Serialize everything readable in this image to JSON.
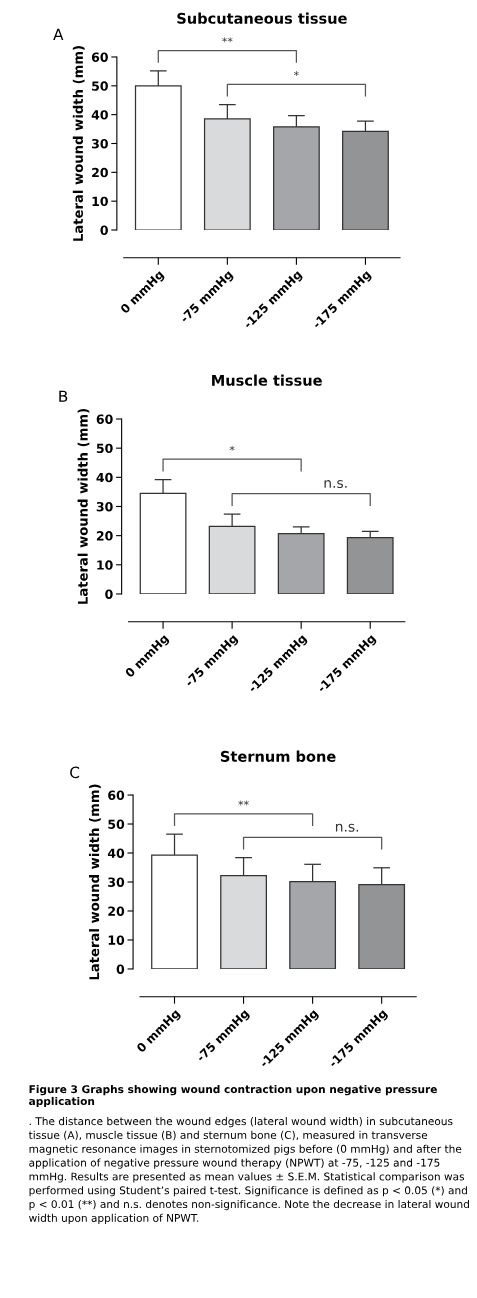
{
  "chart_data": [
    {
      "type": "bar",
      "title": "Subcutaneous tissue",
      "ylabel": "Lateral wound width (mm)",
      "categories": [
        "0 mmHg",
        "-75 mmHg",
        "-125 mmHg",
        "-175 mmHg"
      ],
      "values": [
        50,
        38.5,
        35.8,
        34.2
      ],
      "errors": [
        5.2,
        5,
        3.9,
        3.6
      ],
      "colors": [
        "#ffffff",
        "#d9dadc",
        "#a4a6aa",
        "#939496"
      ],
      "ylim": [
        0,
        60
      ],
      "yticks": [
        0,
        10,
        20,
        30,
        40,
        50,
        60
      ],
      "grid": false,
      "legend": false,
      "annotations": [
        "A",
        "**",
        "*"
      ]
    },
    {
      "type": "bar",
      "title": "Muscle tissue",
      "ylabel": "Lateral wound width (mm)",
      "categories": [
        "0 mmHg",
        "-75 mmHg",
        "-125 mmHg",
        "-175 mmHg"
      ],
      "values": [
        34.5,
        23.2,
        20.7,
        19.3
      ],
      "errors": [
        4.7,
        4.2,
        2.3,
        2.2
      ],
      "colors": [
        "#ffffff",
        "#d9dadc",
        "#a4a6aa",
        "#939496"
      ],
      "ylim": [
        0,
        60
      ],
      "yticks": [
        0,
        10,
        20,
        30,
        40,
        50,
        60
      ],
      "grid": false,
      "legend": false,
      "annotations": [
        "B",
        "*",
        "n.s."
      ]
    },
    {
      "type": "bar",
      "title": "Sternum bone",
      "ylabel": "Lateral wound width (mm)",
      "categories": [
        "0 mmHg",
        "-75 mmHg",
        "-125 mmHg",
        "-175 mmHg"
      ],
      "values": [
        39.3,
        32.2,
        30.1,
        29.1
      ],
      "errors": [
        7.2,
        6.2,
        6,
        5.8
      ],
      "colors": [
        "#ffffff",
        "#d9dadc",
        "#a4a6aa",
        "#939496"
      ],
      "ylim": [
        0,
        60
      ],
      "yticks": [
        0,
        10,
        20,
        30,
        40,
        50,
        60
      ],
      "grid": false,
      "legend": false,
      "annotations": [
        "C",
        "**",
        "n.s.",
        "Figure 3 Graphs showing wound contraction upon negative pressure application",
        ". The distance between the wound edges (lateral wound width) in subcutaneous tissue (A), muscle tissue (B) and sternum bone (C), measured in transverse magnetic resonance images in sternotomized pigs before (0 mmHg) and after the application of negative pressure wound therapy (NPWT) at -75, -125 and -175 mmHg. Results are presented as mean values ± S.E.M. Statistical comparison was performed using Student’s paired t-test. Significance is defined as p < 0.05 (*) and p < 0.01 (**) and n.s. denotes non-significance. Note the decrease in lateral wound width upon application of NPWT."
      ]
    }
  ]
}
